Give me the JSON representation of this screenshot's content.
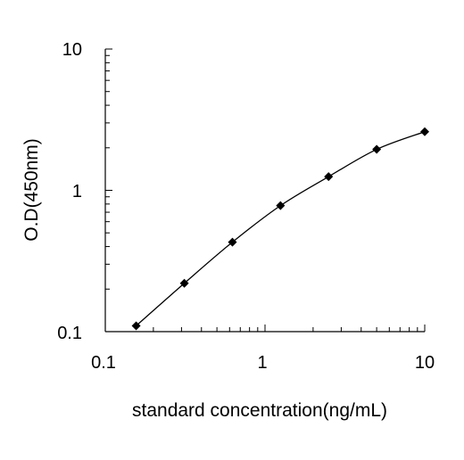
{
  "chart_data": {
    "type": "scatter",
    "xlabel": "standard concentration(ng/mL)",
    "ylabel": "O.D(450nm)",
    "xscale": "log",
    "yscale": "log",
    "xlim": [
      0.1,
      10
    ],
    "ylim": [
      0.1,
      10
    ],
    "x_ticks": [
      "0.1",
      "1",
      "10"
    ],
    "y_ticks": [
      "0.1",
      "1",
      "10"
    ],
    "grid": false,
    "legend": "none",
    "series": [
      {
        "marker": "diamond",
        "fit_line": "smooth",
        "x": [
          0.156,
          0.3125,
          0.625,
          1.25,
          2.5,
          5,
          10
        ],
        "y": [
          0.11,
          0.22,
          0.43,
          0.78,
          1.25,
          1.95,
          2.6
        ]
      }
    ],
    "colors": {
      "marker": "#000000",
      "line": "#000000",
      "axis": "#000000"
    }
  }
}
